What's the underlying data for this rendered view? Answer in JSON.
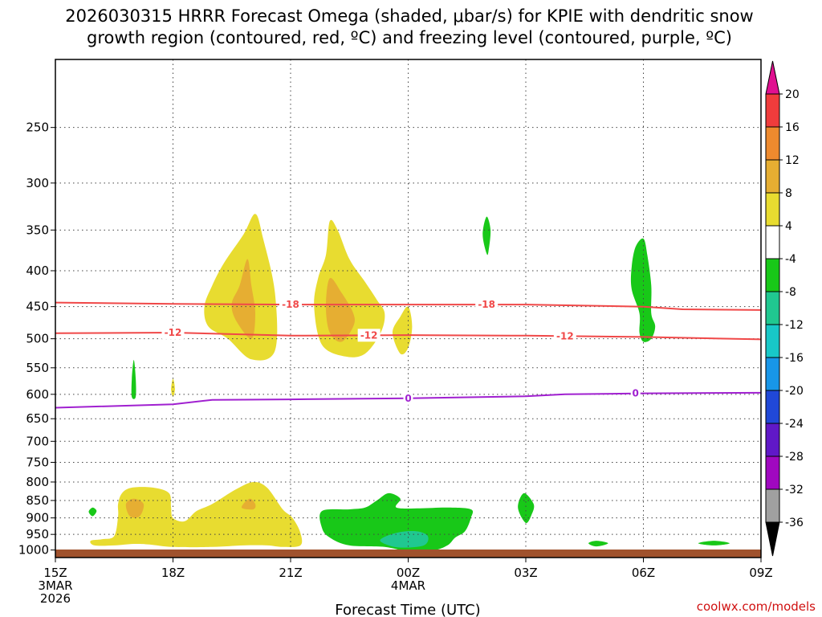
{
  "chart_data": {
    "type": "contour",
    "title_line1": "2026030315 HRRR Forecast Omega (shaded, μbar/s) for KPIE with dendritic snow",
    "title_line2": "growth region (contoured, red, ºC) and freezing level (contoured, purple, ºC)",
    "xlabel": "Forecast Time (UTC)",
    "credit": "coolwx.com/models",
    "pressure_ticks": [
      250,
      300,
      350,
      400,
      450,
      500,
      550,
      600,
      650,
      700,
      750,
      800,
      850,
      900,
      950,
      1000
    ],
    "ylim": [
      1025,
      200
    ],
    "x_ticks": [
      {
        "hour": 0,
        "lines": [
          "15Z",
          "3MAR",
          "2026"
        ]
      },
      {
        "hour": 3,
        "lines": [
          "18Z"
        ]
      },
      {
        "hour": 6,
        "lines": [
          "21Z"
        ]
      },
      {
        "hour": 9,
        "lines": [
          "00Z",
          "4MAR"
        ]
      },
      {
        "hour": 12,
        "lines": [
          "03Z"
        ]
      },
      {
        "hour": 15,
        "lines": [
          "06Z"
        ]
      },
      {
        "hour": 18,
        "lines": [
          "09Z"
        ]
      }
    ],
    "xlim": [
      0,
      18
    ],
    "colorbar": {
      "labels": [
        "20",
        "16",
        "12",
        "8",
        "4",
        "-4",
        "-8",
        "-12",
        "-16",
        "-20",
        "-24",
        "-28",
        "-32",
        "-36"
      ],
      "colors": [
        "#ffffff",
        "#f03c3c",
        "#ee8a2e",
        "#e6ae32",
        "#e8dc30",
        "#ffffff",
        "#18c818",
        "#20c890",
        "#18c8c8",
        "#1896e8",
        "#2048d8",
        "#6018c8",
        "#a008c0",
        "#a0a0a0"
      ],
      "top_arrow_color": "#e01090",
      "bottom_arrow_color": "#000000"
    },
    "series": [
      {
        "name": "-18",
        "type": "isotherm",
        "color": "#f04848",
        "label": "-18",
        "x": [
          0,
          3,
          6,
          9,
          12,
          15,
          16,
          18
        ],
        "p": [
          444,
          446,
          447,
          447,
          447,
          450,
          454,
          455
        ],
        "label_hours": [
          6,
          11
        ]
      },
      {
        "name": "-12",
        "type": "isotherm",
        "color": "#f04848",
        "label": "-12",
        "x": [
          0,
          3,
          6,
          9,
          12,
          15,
          18
        ],
        "p": [
          491,
          490,
          495,
          494,
          495,
          497,
          501
        ],
        "label_hours": [
          3,
          8,
          13
        ]
      },
      {
        "name": "0",
        "type": "freezing level",
        "color": "#a020d0",
        "label": "0",
        "x": [
          0,
          3,
          4,
          6,
          9,
          12,
          13,
          15,
          18
        ],
        "p": [
          627,
          620,
          611,
          610,
          608,
          604,
          600,
          598,
          597
        ],
        "label_hours": [
          9,
          14.8
        ]
      }
    ],
    "omega_regions": [
      {
        "name": "ascent-1730Z-upper",
        "color": "#e8dc30",
        "pts": [
          [
            3.8,
            450
          ],
          [
            4,
            420
          ],
          [
            4.3,
            390
          ],
          [
            4.8,
            355
          ],
          [
            5.1,
            332
          ],
          [
            5.3,
            360
          ],
          [
            5.6,
            430
          ],
          [
            5.6,
            520
          ],
          [
            5,
            535
          ],
          [
            4.4,
            500
          ],
          [
            3.9,
            480
          ]
        ]
      },
      {
        "name": "ascent-1730Z-upper-core",
        "color": "#e6ae32",
        "pts": [
          [
            4.5,
            445
          ],
          [
            4.7,
            420
          ],
          [
            4.9,
            385
          ],
          [
            5.0,
            420
          ],
          [
            5.1,
            460
          ],
          [
            5.0,
            500
          ],
          [
            4.6,
            470
          ]
        ]
      },
      {
        "name": "ascent-2130Z-upper",
        "color": "#e8dc30",
        "pts": [
          [
            6.6,
            450
          ],
          [
            6.7,
            410
          ],
          [
            6.9,
            380
          ],
          [
            7.0,
            340
          ],
          [
            7.2,
            350
          ],
          [
            7.5,
            385
          ],
          [
            7.9,
            415
          ],
          [
            8.2,
            440
          ],
          [
            8.4,
            460
          ],
          [
            8.3,
            490
          ],
          [
            7.9,
            525
          ],
          [
            7.4,
            530
          ],
          [
            6.8,
            510
          ]
        ]
      },
      {
        "name": "ascent-2130Z-upper-core",
        "color": "#e6ae32",
        "pts": [
          [
            6.9,
            450
          ],
          [
            7.0,
            410
          ],
          [
            7.3,
            430
          ],
          [
            7.6,
            460
          ],
          [
            7.6,
            480
          ],
          [
            7.3,
            505
          ],
          [
            7.0,
            490
          ]
        ]
      },
      {
        "name": "ascent-0030Z-small",
        "color": "#e8dc30",
        "pts": [
          [
            8.6,
            490
          ],
          [
            8.8,
            465
          ],
          [
            9.0,
            450
          ],
          [
            9.1,
            480
          ],
          [
            9.0,
            515
          ],
          [
            8.8,
            525
          ]
        ]
      },
      {
        "name": "ascent-1700Z-tiny",
        "color": "#e8dc30",
        "pts": [
          [
            2.95,
            590
          ],
          [
            3.0,
            570
          ],
          [
            3.05,
            590
          ],
          [
            3.0,
            605
          ]
        ]
      },
      {
        "name": "ascent-lower-1630-2200",
        "color": "#e8dc30",
        "pts": [
          [
            0.9,
            970
          ],
          [
            1.2,
            965
          ],
          [
            1.5,
            955
          ],
          [
            1.6,
            895
          ],
          [
            1.6,
            860
          ],
          [
            1.7,
            830
          ],
          [
            1.95,
            815
          ],
          [
            2.5,
            815
          ],
          [
            2.9,
            830
          ],
          [
            2.95,
            870
          ],
          [
            3.0,
            900
          ],
          [
            3.3,
            910
          ],
          [
            3.6,
            880
          ],
          [
            4.0,
            860
          ],
          [
            4.6,
            820
          ],
          [
            5.05,
            800
          ],
          [
            5.4,
            815
          ],
          [
            5.8,
            875
          ],
          [
            6.05,
            900
          ],
          [
            6.25,
            945
          ],
          [
            6.25,
            985
          ],
          [
            5.8,
            990
          ],
          [
            5.4,
            985
          ],
          [
            4.8,
            985
          ],
          [
            4.0,
            990
          ],
          [
            3.0,
            990
          ],
          [
            2.4,
            982
          ],
          [
            2.0,
            980
          ],
          [
            1.5,
            985
          ],
          [
            1.0,
            985
          ]
        ]
      },
      {
        "name": "ascent-lower-core-1",
        "color": "#e6ae32",
        "pts": [
          [
            1.8,
            860
          ],
          [
            2.0,
            845
          ],
          [
            2.25,
            860
          ],
          [
            2.15,
            895
          ],
          [
            1.9,
            895
          ]
        ]
      },
      {
        "name": "ascent-lower-core-2",
        "color": "#e6ae32",
        "pts": [
          [
            4.75,
            870
          ],
          [
            4.95,
            845
          ],
          [
            5.1,
            860
          ],
          [
            5.05,
            875
          ]
        ]
      },
      {
        "name": "descent-1700Z-upper",
        "color": "#18c818",
        "pts": [
          [
            1.95,
            605
          ],
          [
            1.95,
            570
          ],
          [
            2.0,
            536
          ],
          [
            2.05,
            570
          ],
          [
            2.05,
            605
          ]
        ]
      },
      {
        "name": "descent-0200Z-upper",
        "color": "#18c818",
        "pts": [
          [
            10.9,
            355
          ],
          [
            11.0,
            335
          ],
          [
            11.1,
            350
          ],
          [
            11.05,
            375
          ],
          [
            11.0,
            378
          ]
        ]
      },
      {
        "name": "descent-0600Z",
        "color": "#18c818",
        "pts": [
          [
            14.7,
            425
          ],
          [
            14.7,
            395
          ],
          [
            14.8,
            370
          ],
          [
            15.0,
            360
          ],
          [
            15.1,
            380
          ],
          [
            15.2,
            420
          ],
          [
            15.2,
            460
          ],
          [
            15.3,
            480
          ],
          [
            15.2,
            500
          ],
          [
            15.0,
            505
          ],
          [
            14.9,
            490
          ],
          [
            14.9,
            460
          ]
        ]
      },
      {
        "name": "descent-1530Z-tiny",
        "color": "#18c818",
        "pts": [
          [
            0.85,
            882
          ],
          [
            0.95,
            870
          ],
          [
            1.05,
            880
          ],
          [
            0.95,
            895
          ]
        ]
      },
      {
        "name": "descent-0300Z-lower",
        "color": "#18c818",
        "pts": [
          [
            11.8,
            870
          ],
          [
            11.95,
            830
          ],
          [
            12.2,
            860
          ],
          [
            12.15,
            890
          ],
          [
            12.0,
            915
          ]
        ]
      },
      {
        "name": "descent-00Z-lower",
        "color": "#18c818",
        "pts": [
          [
            6.8,
            880
          ],
          [
            7.5,
            875
          ],
          [
            7.9,
            870
          ],
          [
            8.2,
            850
          ],
          [
            8.5,
            830
          ],
          [
            8.8,
            845
          ],
          [
            8.7,
            870
          ],
          [
            9.3,
            872
          ],
          [
            10.0,
            870
          ],
          [
            10.6,
            875
          ],
          [
            10.6,
            900
          ],
          [
            10.45,
            940
          ],
          [
            10.2,
            960
          ],
          [
            10.0,
            985
          ],
          [
            9.6,
            1003
          ],
          [
            9.0,
            1005
          ],
          [
            8.4,
            990
          ],
          [
            7.5,
            985
          ],
          [
            7.0,
            960
          ],
          [
            6.8,
            930
          ]
        ]
      },
      {
        "name": "descent-00Z-lower-core",
        "color": "#20c890",
        "pts": [
          [
            8.3,
            965
          ],
          [
            8.7,
            945
          ],
          [
            9.2,
            940
          ],
          [
            9.5,
            955
          ],
          [
            9.4,
            985
          ],
          [
            8.8,
            992
          ],
          [
            8.4,
            980
          ]
        ]
      },
      {
        "name": "descent-0400Z-sfc",
        "color": "#18c818",
        "pts": [
          [
            13.6,
            978
          ],
          [
            13.8,
            970
          ],
          [
            14.1,
            978
          ],
          [
            13.8,
            988
          ]
        ]
      },
      {
        "name": "descent-0730Z-sfc",
        "color": "#18c818",
        "pts": [
          [
            16.4,
            978
          ],
          [
            16.8,
            970
          ],
          [
            17.2,
            978
          ],
          [
            16.8,
            985
          ]
        ]
      }
    ]
  }
}
